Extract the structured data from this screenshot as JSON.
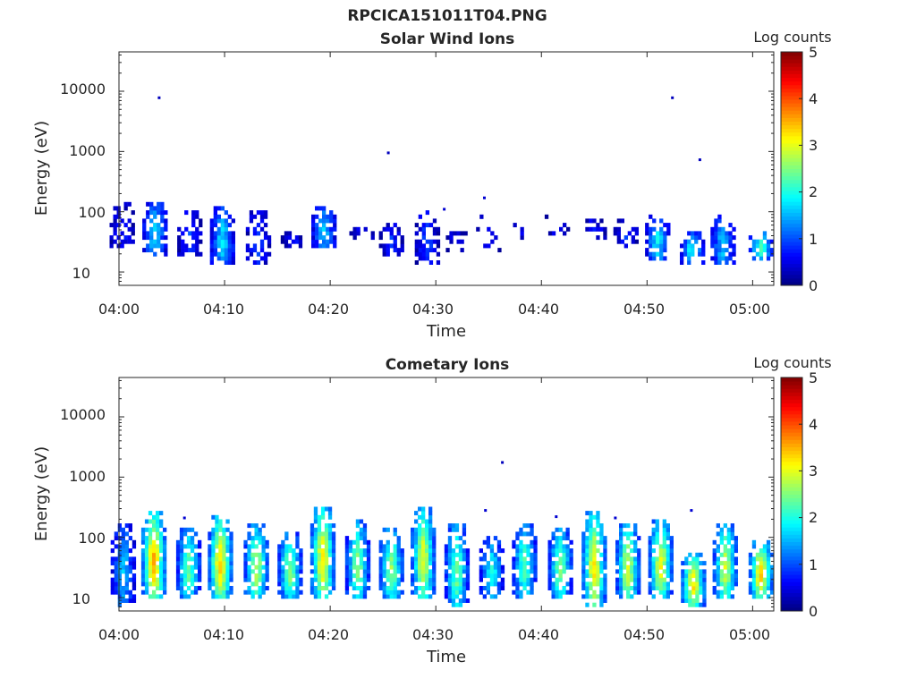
{
  "figure_title": "RPCICA151011T04.PNG",
  "chart_data": [
    {
      "type": "heatmap",
      "title": "Solar Wind Ions",
      "xlabel": "Time",
      "ylabel": "Energy (eV)",
      "x_ticks": [
        "04:00",
        "04:10",
        "04:20",
        "04:30",
        "04:40",
        "04:50",
        "05:00"
      ],
      "x_range_min": [
        0,
        62
      ],
      "y_ticks": [
        "10",
        "100",
        "1000",
        "10000"
      ],
      "y_scale": "log",
      "y_range": [
        6,
        45000
      ],
      "colorbar": {
        "label": "Log counts",
        "ticks": [
          "0",
          "1",
          "2",
          "3",
          "4",
          "5"
        ],
        "range": [
          0,
          5
        ],
        "colormap": "jet"
      },
      "bursts": [
        {
          "t": 0.3,
          "emin": 25,
          "emax": 150,
          "peak": 0.7,
          "density": 0.45
        },
        {
          "t": 3.4,
          "emin": 18,
          "emax": 150,
          "peak": 1.7,
          "density": 0.75
        },
        {
          "t": 6.7,
          "emin": 18,
          "emax": 100,
          "peak": 0.9,
          "density": 0.6
        },
        {
          "t": 9.8,
          "emin": 13,
          "emax": 130,
          "peak": 1.7,
          "density": 0.85
        },
        {
          "t": 13.2,
          "emin": 13,
          "emax": 100,
          "peak": 0.9,
          "density": 0.65
        },
        {
          "t": 16.5,
          "emin": 25,
          "emax": 45,
          "peak": 0.6,
          "density": 0.5
        },
        {
          "t": 19.4,
          "emin": 25,
          "emax": 130,
          "peak": 1.6,
          "density": 0.85
        },
        {
          "t": 23.0,
          "emin": 35,
          "emax": 60,
          "peak": 0.6,
          "density": 0.4
        },
        {
          "t": 25.8,
          "emin": 18,
          "emax": 70,
          "peak": 0.8,
          "density": 0.55
        },
        {
          "t": 29.2,
          "emin": 13,
          "emax": 110,
          "peak": 0.9,
          "density": 0.6
        },
        {
          "t": 31.8,
          "emin": 20,
          "emax": 60,
          "peak": 0.5,
          "density": 0.25
        },
        {
          "t": 35.0,
          "emin": 20,
          "emax": 110,
          "peak": 0.5,
          "density": 0.2
        },
        {
          "t": 38.5,
          "emin": 35,
          "emax": 90,
          "peak": 0.5,
          "density": 0.2
        },
        {
          "t": 41.5,
          "emin": 40,
          "emax": 110,
          "peak": 0.5,
          "density": 0.2
        },
        {
          "t": 45.0,
          "emin": 35,
          "emax": 80,
          "peak": 0.7,
          "density": 0.5
        },
        {
          "t": 48.0,
          "emin": 25,
          "emax": 75,
          "peak": 0.9,
          "density": 0.55
        },
        {
          "t": 51.0,
          "emin": 15,
          "emax": 85,
          "peak": 1.8,
          "density": 0.75
        },
        {
          "t": 54.3,
          "emin": 13,
          "emax": 45,
          "peak": 1.9,
          "density": 0.75
        },
        {
          "t": 57.2,
          "emin": 13,
          "emax": 90,
          "peak": 1.6,
          "density": 0.75
        },
        {
          "t": 60.8,
          "emin": 16,
          "emax": 50,
          "peak": 2.2,
          "density": 0.8
        }
      ],
      "points": [
        {
          "t": 3.8,
          "e": 7800,
          "v": 0.3
        },
        {
          "t": 52.4,
          "e": 7800,
          "v": 0.3
        },
        {
          "t": 25.5,
          "e": 950,
          "v": 0.3
        },
        {
          "t": 55.0,
          "e": 730,
          "v": 0.3
        },
        {
          "t": 34.6,
          "e": 170,
          "v": 0.4
        },
        {
          "t": 30.8,
          "e": 110,
          "v": 0.4
        }
      ]
    },
    {
      "type": "heatmap",
      "title": "Cometary Ions",
      "xlabel": "Time",
      "ylabel": "Energy (eV)",
      "x_ticks": [
        "04:00",
        "04:10",
        "04:20",
        "04:30",
        "04:40",
        "04:50",
        "05:00"
      ],
      "x_range_min": [
        0,
        62
      ],
      "y_ticks": [
        "10",
        "100",
        "1000",
        "10000"
      ],
      "y_scale": "log",
      "y_range": [
        6,
        45000
      ],
      "colorbar": {
        "label": "Log counts",
        "ticks": [
          "0",
          "1",
          "2",
          "3",
          "4",
          "5"
        ],
        "range": [
          0,
          5
        ],
        "colormap": "jet"
      },
      "bursts": [
        {
          "t": 0.4,
          "emin": 7,
          "emax": 180,
          "peak": 1.6,
          "density": 0.8
        },
        {
          "t": 3.3,
          "emin": 10,
          "emax": 280,
          "peak": 3.5,
          "density": 0.95
        },
        {
          "t": 6.6,
          "emin": 10,
          "emax": 150,
          "peak": 2.4,
          "density": 0.9
        },
        {
          "t": 9.6,
          "emin": 10,
          "emax": 230,
          "peak": 3.3,
          "density": 0.95
        },
        {
          "t": 13.0,
          "emin": 10,
          "emax": 160,
          "peak": 2.8,
          "density": 0.9
        },
        {
          "t": 16.2,
          "emin": 10,
          "emax": 120,
          "peak": 2.5,
          "density": 0.9
        },
        {
          "t": 19.3,
          "emin": 10,
          "emax": 340,
          "peak": 3.2,
          "density": 0.95
        },
        {
          "t": 22.6,
          "emin": 10,
          "emax": 190,
          "peak": 2.5,
          "density": 0.9
        },
        {
          "t": 25.8,
          "emin": 10,
          "emax": 140,
          "peak": 2.6,
          "density": 0.9
        },
        {
          "t": 28.8,
          "emin": 10,
          "emax": 320,
          "peak": 3.0,
          "density": 0.95
        },
        {
          "t": 32.0,
          "emin": 7,
          "emax": 180,
          "peak": 2.4,
          "density": 0.9
        },
        {
          "t": 35.3,
          "emin": 10,
          "emax": 100,
          "peak": 2.0,
          "density": 0.8
        },
        {
          "t": 38.4,
          "emin": 10,
          "emax": 180,
          "peak": 2.3,
          "density": 0.85
        },
        {
          "t": 41.8,
          "emin": 10,
          "emax": 150,
          "peak": 2.5,
          "density": 0.85
        },
        {
          "t": 45.0,
          "emin": 7,
          "emax": 260,
          "peak": 3.2,
          "density": 0.95
        },
        {
          "t": 48.2,
          "emin": 10,
          "emax": 170,
          "peak": 2.9,
          "density": 0.9
        },
        {
          "t": 51.3,
          "emin": 10,
          "emax": 200,
          "peak": 3.0,
          "density": 0.9
        },
        {
          "t": 54.4,
          "emin": 7,
          "emax": 60,
          "peak": 3.2,
          "density": 0.95
        },
        {
          "t": 57.4,
          "emin": 10,
          "emax": 170,
          "peak": 2.9,
          "density": 0.9
        },
        {
          "t": 60.8,
          "emin": 10,
          "emax": 90,
          "peak": 3.3,
          "density": 0.9
        }
      ],
      "points": [
        {
          "t": 36.3,
          "e": 1750,
          "v": 0.3
        },
        {
          "t": 6.2,
          "e": 210,
          "v": 0.4
        },
        {
          "t": 34.7,
          "e": 280,
          "v": 0.4
        },
        {
          "t": 41.4,
          "e": 220,
          "v": 0.4
        },
        {
          "t": 47.0,
          "e": 210,
          "v": 0.4
        },
        {
          "t": 54.2,
          "e": 280,
          "v": 0.4
        }
      ]
    }
  ]
}
